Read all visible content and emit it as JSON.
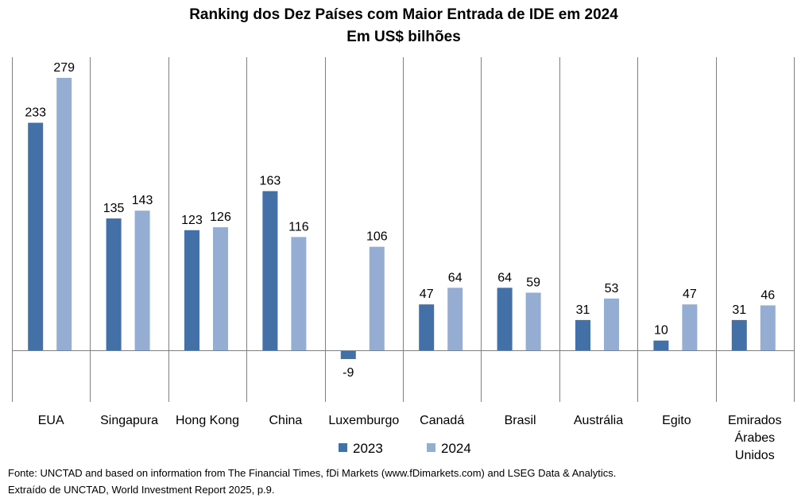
{
  "chart_data": {
    "type": "bar",
    "title": "Ranking dos Dez Países com Maior Entrada de IDE em 2024",
    "subtitle": "Em US$ bilhões",
    "categories": [
      [
        "EUA"
      ],
      [
        "Singapura"
      ],
      [
        "Hong Kong"
      ],
      [
        "China"
      ],
      [
        "Luxemburgo"
      ],
      [
        "Canadá"
      ],
      [
        "Brasil"
      ],
      [
        "Austrália"
      ],
      [
        "Egito"
      ],
      [
        "Emirados",
        "Árabes",
        "Unidos"
      ]
    ],
    "series": [
      {
        "name": "2023",
        "color": "#4470A8",
        "values": [
          233,
          135,
          123,
          163,
          -9,
          47,
          64,
          31,
          10,
          31
        ]
      },
      {
        "name": "2024",
        "color": "#96ADD3",
        "values": [
          279,
          143,
          126,
          116,
          106,
          64,
          59,
          53,
          47,
          46
        ]
      }
    ],
    "ylim": [
      -50,
      300
    ],
    "grid": false,
    "legend": "bottom"
  },
  "source": {
    "line1": "Fonte: UNCTAD and based on information from The Financial Times, fDi Markets (www.fDimarkets.com) and LSEG Data & Analytics.",
    "line2": "Extraído de UNCTAD, World Investment Report 2025, p.9."
  }
}
